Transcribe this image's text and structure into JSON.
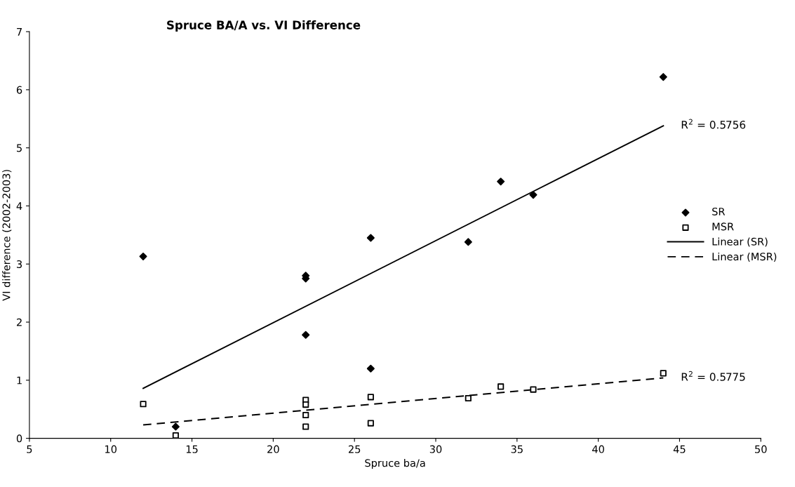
{
  "chart_data": {
    "type": "scatter",
    "title": "Spruce BA/A vs. VI Difference",
    "xlabel": "Spruce ba/a",
    "ylabel": "VI difference (2002-2003)",
    "xlim": [
      5,
      50
    ],
    "xticks": [
      5,
      10,
      15,
      20,
      25,
      30,
      35,
      40,
      45,
      50
    ],
    "ylim": [
      0,
      7
    ],
    "yticks": [
      0,
      1,
      2,
      3,
      4,
      5,
      6,
      7
    ],
    "grid": false,
    "legend": "right",
    "series": [
      {
        "name": "SR",
        "marker": "diamond",
        "color": "#000000",
        "x": [
          12,
          14,
          22,
          22,
          22,
          26,
          26,
          32,
          34,
          36,
          44
        ],
        "values": [
          3.13,
          0.2,
          2.8,
          2.75,
          1.78,
          3.45,
          1.2,
          3.38,
          4.42,
          4.19,
          6.22
        ]
      },
      {
        "name": "MSR",
        "marker": "square",
        "color": "#000000",
        "x": [
          12,
          14,
          22,
          22,
          22,
          22,
          26,
          26,
          32,
          34,
          36,
          44
        ],
        "values": [
          0.59,
          0.05,
          0.66,
          0.58,
          0.4,
          0.2,
          0.71,
          0.26,
          0.69,
          0.89,
          0.84,
          1.12
        ]
      },
      {
        "name": "Linear (SR)",
        "type": "line",
        "line_style": "solid",
        "color": "#000000",
        "x": [
          12,
          44
        ],
        "values": [
          0.86,
          5.38
        ]
      },
      {
        "name": "Linear (MSR)",
        "type": "line",
        "line_style": "dashed",
        "color": "#000000",
        "x": [
          12,
          44
        ],
        "values": [
          0.23,
          1.04
        ]
      }
    ],
    "annotations": [
      {
        "text": "R$^{2}$ = 0.5756",
        "x": 44,
        "y": 5.38
      },
      {
        "text": "R$^{2}$ = 0.5775",
        "x": 44,
        "y": 1.04
      }
    ]
  }
}
